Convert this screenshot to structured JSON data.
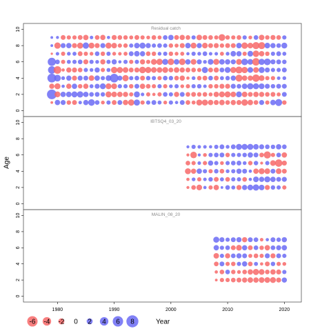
{
  "chart_data": {
    "type": "scatter",
    "subtype": "bubble",
    "xlabel": "Year",
    "ylabel": "Age",
    "xlim": [
      1974,
      2023
    ],
    "x_ticks": [
      1980,
      1990,
      2000,
      2010,
      2020
    ],
    "y_ticks": [
      0,
      2,
      4,
      6,
      8,
      10
    ],
    "grid": false,
    "colors": {
      "positive": "#6b6bf5",
      "negative": "#f76868",
      "frame": "#555555"
    },
    "legend": {
      "placement": "bottom-left",
      "values": [
        -6,
        -4,
        -2,
        0,
        2,
        4,
        6,
        8
      ]
    },
    "panels": [
      {
        "title": "Residual catch",
        "ylim": [
          -0.3,
          10.3
        ],
        "years": [
          1979,
          1980,
          1981,
          1982,
          1983,
          1984,
          1985,
          1986,
          1987,
          1988,
          1989,
          1990,
          1991,
          1992,
          1993,
          1994,
          1995,
          1996,
          1997,
          1998,
          1999,
          2000,
          2001,
          2002,
          2003,
          2004,
          2005,
          2006,
          2007,
          2008,
          2009,
          2010,
          2011,
          2012,
          2013,
          2014,
          2015,
          2016,
          2017,
          2018,
          2019,
          2020
        ],
        "ages": [
          1,
          2,
          3,
          4,
          5,
          6,
          7,
          8,
          9
        ],
        "residuals": [
          [
            -0.4,
            1.6,
            1.4,
            -1.1,
            -1.3,
            0.7,
            1.5,
            2.4,
            1.2,
            -0.8,
            1.0,
            -1.3,
            1.3,
            -1.6,
            -2.2,
            2.1,
            -1.0,
            1.0,
            1.3,
            0.9,
            -0.8,
            1.0,
            0.6,
            1.3,
            -1.2,
            -0.9,
            -2.0,
            -2.0,
            -1.6,
            -1.4,
            -1.7,
            -1.2,
            -1.5,
            -1.4,
            -2.3,
            -1.7,
            -1.2,
            1.4,
            -1.0,
            1.7,
            2.7,
            -1.1
          ],
          [
            5.2,
            -1.9,
            1.6,
            1.7,
            2.0,
            2.2,
            1.6,
            1.2,
            1.3,
            1.1,
            -2.0,
            -1.7,
            -1.6,
            -1.5,
            -1.0,
            2.0,
            0.7,
            -1.0,
            -0.6,
            -1.0,
            1.2,
            1.0,
            -1.5,
            1.3,
            -1.2,
            -1.3,
            -1.1,
            -1.2,
            -0.9,
            -1.6,
            -1.9,
            -2.0,
            -1.7,
            1.9,
            -1.7,
            -1.3,
            -1.6,
            -1.5,
            -1.2,
            -1.3,
            -0.9,
            1.3
          ],
          [
            -1.5,
            -2.0,
            0.6,
            -1.5,
            1.6,
            -1.1,
            -1.5,
            0.9,
            1.4,
            1.9,
            -1.9,
            -1.8,
            1.0,
            1.0,
            -1.1,
            1.3,
            -1.6,
            -1.2,
            -1.0,
            1.0,
            -1.0,
            0.8,
            1.0,
            -0.8,
            -1.0,
            1.0,
            1.1,
            0.7,
            -1.1,
            -1.1,
            -1.4,
            -1.4,
            1.4,
            1.2,
            1.7,
            2.1,
            2.0,
            1.8,
            1.4,
            1.1,
            1.3,
            1.3
          ],
          [
            4.3,
            2.5,
            0.8,
            1.5,
            -1.4,
            1.4,
            1.3,
            -1.7,
            1.6,
            1.0,
            1.8,
            4.1,
            1.4,
            -2.2,
            1.0,
            1.2,
            -1.3,
            1.1,
            1.0,
            -1.0,
            1.2,
            1.1,
            -1.2,
            -1.5,
            -0.6,
            0.8,
            -1.1,
            -1.3,
            1.2,
            -1.3,
            0.9,
            1.1,
            1.5,
            -2.7,
            -1.6,
            -1.5,
            -3.0,
            -1.8,
            -1.0,
            -1.0,
            0.7,
            0.8
          ],
          [
            3.2,
            -3.2,
            -0.6,
            -1.5,
            -1.4,
            -1.2,
            1.0,
            0.8,
            1.5,
            -1.0,
            0.9,
            -2.3,
            -2.0,
            -1.8,
            -1.3,
            -1.4,
            -2.4,
            -2.1,
            -1.8,
            -1.7,
            -1.9,
            -1.3,
            -1.7,
            -1.5,
            -1.3,
            -1.2,
            -1.0,
            2.1,
            -1.3,
            -1.5,
            1.3,
            1.9,
            -2.0,
            -2.7,
            -2.2,
            1.8,
            -1.8,
            2.0,
            1.4,
            1.0,
            1.0,
            1.3
          ],
          [
            3.7,
            1.2,
            -1.0,
            0.9,
            1.0,
            1.2,
            -1.4,
            1.0,
            0.8,
            -1.5,
            1.0,
            1.5,
            0.6,
            1.0,
            -1.0,
            1.0,
            -1.5,
            -1.0,
            -1.9,
            -2.2,
            2.0,
            -2.3,
            1.7,
            -2.3,
            1.6,
            -1.8,
            1.4,
            0.8,
            1.8,
            -2.0,
            1.7,
            1.6,
            1.4,
            -1.9,
            2.4,
            1.8,
            -3.1,
            2.1,
            2.5,
            1.4,
            1.3,
            1.1
          ],
          [
            -0.3,
            0.7,
            -1.0,
            0.8,
            0.9,
            -1.3,
            -1.0,
            -0.8,
            1.2,
            -1.1,
            1.0,
            -0.8,
            -0.7,
            -0.9,
            1.3,
            1.7,
            1.5,
            -1.2,
            -1.1,
            0.8,
            1.0,
            -1.1,
            -0.8,
            -0.9,
            0.6,
            1.0,
            0.8,
            1.2,
            0.7,
            0.7,
            -0.9,
            0.8,
            1.7,
            1.5,
            -1.0,
            1.8,
            -2.3,
            -1.6,
            -1.1,
            1.0,
            1.3,
            0.9
          ],
          [
            0.4,
            -2.2,
            1.4,
            1.6,
            -1.4,
            -2.0,
            2.2,
            -1.9,
            -1.4,
            1.4,
            -2.0,
            -1.7,
            -1.0,
            -1.1,
            1.0,
            1.7,
            2.0,
            1.5,
            1.0,
            1.2,
            1.0,
            -1.1,
            -0.9,
            -1.4,
            1.7,
            -1.9,
            1.5,
            -1.8,
            -1.3,
            -1.4,
            -1.1,
            -1.3,
            -1.3,
            1.7,
            -2.3,
            -1.8,
            -2.8,
            -2.7,
            1.8,
            1.5,
            1.2,
            1.9
          ],
          [
            0.4,
            0.5,
            -1.3,
            -1.0,
            -1.0,
            -1.3,
            -1.6,
            0.7,
            -1.2,
            -1.5,
            0.6,
            -1.4,
            -1.2,
            -1.1,
            -0.9,
            -1.3,
            -1.0,
            -0.8,
            -1.2,
            -0.9,
            1.2,
            1.6,
            -1.3,
            -1.5,
            -1.2,
            1.0,
            -1.7,
            -1.3,
            -1.2,
            -1.0,
            -2.5,
            -1.1,
            -1.0,
            -1.2,
            1.0,
            -0.8,
            1.2,
            -1.7,
            -1.1,
            -1.4,
            -1.2,
            1.0
          ]
        ]
      },
      {
        "title": "IBTSQ4_03_20",
        "ylim": [
          -0.3,
          10.3
        ],
        "years": [
          2003,
          2004,
          2005,
          2006,
          2007,
          2008,
          2009,
          2010,
          2011,
          2012,
          2013,
          2014,
          2015,
          2016,
          2017,
          2018,
          2019,
          2020
        ],
        "ages": [
          2,
          3,
          4,
          5,
          6,
          7
        ],
        "residuals": [
          [
            -0.5,
            -1.2,
            -1.8,
            0.6,
            -1.0,
            -1.6,
            0.4,
            1.2,
            0.9,
            -1.4,
            1.5,
            1.8,
            2.2,
            1.7,
            -1.4,
            1.1,
            1.0,
            -1.0
          ],
          [
            -0.6,
            0.8,
            -1.0,
            0.7,
            1.1,
            -1.3,
            0.9,
            -1.2,
            1.0,
            1.0,
            -1.2,
            0.6,
            1.8,
            1.5,
            2.0,
            1.6,
            1.3,
            1.4
          ],
          [
            -2.0,
            -1.5,
            1.6,
            1.0,
            -1.0,
            1.1,
            -1.2,
            0.8,
            1.0,
            1.5,
            1.3,
            0.6,
            -1.6,
            -2.0,
            -1.8,
            1.3,
            -1.8,
            -1.3
          ],
          [
            -1.2,
            -1.0,
            0.7,
            -1.0,
            1.5,
            1.0,
            -0.8,
            1.0,
            1.2,
            1.3,
            0.8,
            -1.1,
            1.1,
            -0.5,
            1.0,
            -1.8,
            -3.0,
            -1.4
          ],
          [
            -0.5,
            -2.4,
            0.5,
            -0.8,
            1.0,
            1.2,
            1.3,
            -1.1,
            1.0,
            1.0,
            1.1,
            1.6,
            1.3,
            -1.2,
            -2.8,
            -1.0,
            1.2,
            -1.6
          ],
          [
            0.5,
            1.0,
            0.7,
            0.7,
            0.6,
            1.0,
            1.3,
            0.8,
            1.3,
            2.0,
            2.0,
            2.0,
            1.7,
            1.4,
            1.2,
            1.1,
            1.6,
            1.2
          ]
        ]
      },
      {
        "title": "MALIN_08_20",
        "ylim": [
          -0.3,
          10.3
        ],
        "years": [
          2008,
          2009,
          2010,
          2011,
          2012,
          2013,
          2014,
          2015,
          2016,
          2017,
          2018,
          2019,
          2020
        ],
        "ages": [
          2,
          3,
          4,
          5,
          6,
          7
        ],
        "residuals": [
          [
            -0.4,
            -1.0,
            -1.0,
            -1.2,
            -1.3,
            -1.5,
            -1.7,
            -1.6,
            -1.8,
            -1.8,
            -1.9,
            -1.4,
            1.5
          ],
          [
            -0.6,
            -1.2,
            1.2,
            -1.1,
            -0.8,
            -1.2,
            -1.6,
            -2.1,
            -1.8,
            -1.2,
            -1.6,
            -1.4,
            1.0
          ],
          [
            -1.2,
            1.3,
            -1.0,
            -1.1,
            1.0,
            1.5,
            -1.2,
            0.9,
            -0.6,
            -1.3,
            1.1,
            -1.0,
            -0.8
          ],
          [
            -1.7,
            1.0,
            -1.5,
            1.2,
            1.5,
            1.3,
            -0.9,
            -1.2,
            -1.0,
            1.4,
            -1.4,
            1.3,
            1.0
          ],
          [
            1.6,
            1.0,
            1.2,
            -1.3,
            -1.8,
            1.5,
            -1.3,
            1.2,
            -1.1,
            -1.6,
            1.2,
            1.4,
            1.6
          ],
          [
            2.0,
            1.4,
            1.0,
            1.3,
            1.5,
            -1.5,
            1.3,
            1.2,
            -0.7,
            0.6,
            1.3,
            1.1,
            1.5
          ]
        ]
      }
    ]
  }
}
